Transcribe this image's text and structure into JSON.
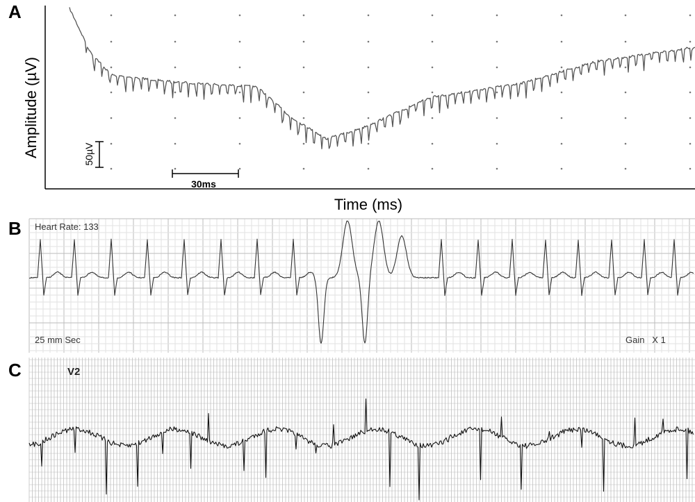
{
  "panel_a": {
    "label": "A",
    "y_axis_title": "Amplitude (µV)",
    "x_axis_title": "Time (ms)",
    "scale_bar_amplitude": "50µV",
    "scale_bar_time": "30ms"
  },
  "panel_b": {
    "label": "B",
    "heart_rate": "Heart Rate: 133",
    "paper_speed": "25 mm Sec",
    "gain": "Gain   X 1"
  },
  "panel_c": {
    "label": "C",
    "lead": "V2"
  }
}
